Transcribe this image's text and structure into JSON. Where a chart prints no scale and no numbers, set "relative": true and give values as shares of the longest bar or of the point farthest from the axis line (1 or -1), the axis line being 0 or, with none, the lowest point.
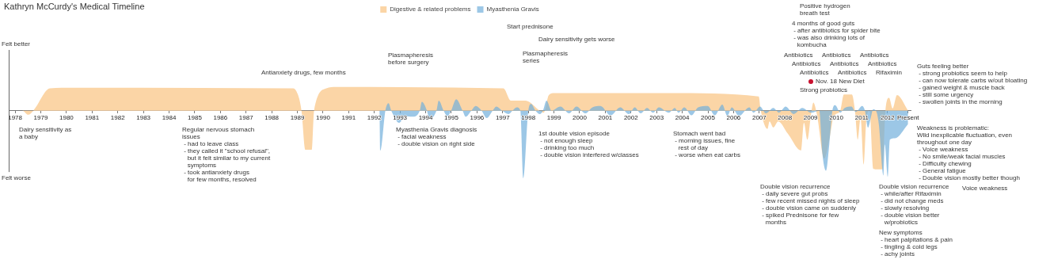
{
  "chart_data": {
    "type": "area",
    "title": "Kathryn McCurdy's Medical Timeline",
    "relative": true,
    "legend": "top",
    "xlim": [
      1977.75,
      2012.9
    ],
    "xticks": [
      1978,
      1979,
      1980,
      1981,
      1982,
      1983,
      1984,
      1985,
      1986,
      1987,
      1988,
      1989,
      1990,
      1991,
      1992,
      1993,
      1994,
      1995,
      1996,
      1997,
      1998,
      1999,
      2000,
      2001,
      2002,
      2003,
      2004,
      2005,
      2006,
      2007,
      2008,
      2009,
      2010,
      2011,
      2012,
      {
        "value": 2012.8,
        "label": "Present"
      }
    ],
    "series": [
      {
        "name": "Digestive & related problems",
        "color": "#fbd5a6",
        "x": [
          1978,
          1978.28,
          1978.51,
          1978.71,
          1979.36,
          1980.27,
          1988.8,
          1988.94,
          1989.16,
          1989.31,
          1989.56,
          1989.65,
          1990.13,
          1990.5,
          1997.03,
          1997.32,
          1997.89,
          1998.45,
          1998.6,
          1998.8,
          1999.02,
          2003.48,
          2006.98,
          2007.06,
          2007.32,
          2007.4,
          2007.55,
          2007.74,
          2008.11,
          2008.63,
          2008.74,
          2008.88,
          2009.02,
          2009.11,
          2009.25,
          2009.53,
          2009.73,
          2009.88,
          2009.99,
          2010.16,
          2010.3,
          2010.61,
          2010.73,
          2010.84,
          2010.95,
          2011.07,
          2011.18,
          2011.3,
          2011.44,
          2011.52,
          2011.81,
          2011.92,
          2012.06,
          2012.2,
          2012.37,
          2012.8
        ],
        "values": [
          0,
          0,
          -0.06,
          0,
          0.33,
          0.34,
          0.33,
          0.3,
          0,
          -0.58,
          -0.58,
          0,
          0.33,
          0.35,
          0.33,
          0.15,
          0.15,
          0,
          -0.03,
          0.23,
          0.26,
          0.26,
          0.21,
          0,
          -0.27,
          -0.16,
          -0.25,
          -0.16,
          -0.34,
          -0.59,
          -0.18,
          -0.43,
          -0.05,
          0.12,
          -0.06,
          -0.71,
          -0.43,
          -0.11,
          -0.05,
          0,
          0.24,
          0.24,
          0,
          -0.43,
          -0.11,
          -0.8,
          -0.11,
          0,
          -0.86,
          -0.87,
          -0.87,
          0,
          0.19,
          0.03,
          0.23,
          0
        ]
      },
      {
        "name": "Myasthenia Gravis",
        "color": "#72afdc",
        "x": [
          1978,
          1992.2,
          1992.23,
          1992.43,
          1992.55,
          1992.66,
          1992.97,
          1993.2,
          1993.48,
          1993.77,
          1993.85,
          1994.05,
          1994.14,
          1994.42,
          1994.51,
          1994.7,
          1994.85,
          1994.99,
          1995.19,
          1995.44,
          1995.56,
          1995.78,
          1995.95,
          1996.18,
          1996.38,
          1996.61,
          1996.75,
          1996.98,
          1997.23,
          1997.38,
          1997.55,
          1997.69,
          1997.8,
          1998.0,
          1998.11,
          1998.28,
          1998.45,
          1998.57,
          1998.71,
          1998.91,
          1999.25,
          1999.59,
          1999.88,
          2000.22,
          2000.5,
          2000.81,
          2001.21,
          2001.58,
          2001.92,
          2002.15,
          2002.38,
          2002.63,
          2002.86,
          2003.09,
          2003.48,
          2003.71,
          2003.85,
          2004.08,
          2004.36,
          2004.62,
          2004.99,
          2005.27,
          2005.56,
          2005.76,
          2005.93,
          2006.21,
          2006.61,
          2006.78,
          2007.03,
          2007.26,
          2007.55,
          2007.77,
          2008.03,
          2008.34,
          2008.68,
          2009.02,
          2009.34,
          2009.45,
          2009.6,
          2009.73,
          2009.85,
          2009.96,
          2010.16,
          2010.33,
          2010.59,
          2010.76,
          2011.01,
          2011.12,
          2011.24,
          2011.35,
          2011.44,
          2011.58,
          2011.66,
          2011.84,
          2011.89,
          2012.01,
          2012.09,
          2012.29,
          2012.8
        ],
        "values": [
          0,
          0,
          -0.59,
          0,
          0.11,
          0,
          -0.18,
          -0.08,
          -0.09,
          0,
          0.13,
          0,
          -0.12,
          0,
          0.15,
          0,
          -0.08,
          0,
          0.17,
          0,
          -0.09,
          0,
          0.07,
          0,
          -0.11,
          0,
          0.06,
          0,
          -0.05,
          0,
          0.05,
          0,
          -1,
          0,
          0.1,
          0,
          -0.05,
          0,
          0.15,
          0,
          0.06,
          -0.04,
          0.06,
          -0.04,
          0.05,
          0.07,
          -0.07,
          0.05,
          -0.05,
          0.05,
          -0.04,
          0.04,
          -0.03,
          0.05,
          -0.03,
          0.04,
          -0.03,
          0.05,
          -0.07,
          0.05,
          0.07,
          -0.07,
          0.09,
          -0.08,
          0.05,
          -0.08,
          0.05,
          -0.03,
          0.06,
          -0.04,
          0.04,
          -0.03,
          0.06,
          -0.05,
          0.04,
          -0.03,
          0,
          -0.6,
          -0.89,
          -0.5,
          0,
          0.08,
          -0.03,
          0.04,
          0.06,
          -0.02,
          0.07,
          0,
          -0.25,
          -0.1,
          0.02,
          -0.03,
          -0.2,
          -0.96,
          -0.5,
          -0.98,
          -0.43,
          -0.41,
          -0.2
        ]
      }
    ],
    "annotations": [
      "Felt better",
      "Felt worse",
      "Dairy sensitivity as\na baby",
      "Antianxiety drugs, few months",
      "Regular nervous stomach\nissues\n - had to leave class\n - they called it \"school refusal\",\n   but it felt similar to my current\n   symptoms\n - took antianxiety drugs\n   for few months, resolved",
      "Plasmapheresis\nbefore surgery",
      "Myasthenia Gravis diagnosis\n - facial weakness\n - double vision on right side",
      "Start prednisone",
      "Dairy sensitivity gets worse",
      "Plasmapheresis\nseries",
      "1st double vision episode\n - not enough sleep\n - drinking too much\n - double vision interfered w/classes",
      "Stomach went bad\n - morning issues, fine\n   rest of day\n - worse when eat carbs",
      "Positive hydrogen\nbreath test",
      "4 months of good guts\n - after antibiotics for spider bite\n - was also drinking lots of\n   kombucha",
      "Antibiotics",
      "Antibiotics",
      "Antibiotics",
      "Antibiotics",
      "Antibiotics",
      "Antibiotics",
      "Antibiotics",
      "Antibiotics",
      "Rifaximin",
      "Nov. 18 New Diet",
      "Strong probiotics",
      "Guts feeling better\n - strong probiotics seem to help\n - can now tolerate carbs w/out bloating\n - gained weight & muscle back\n - still some urgency\n - swollen joints in the morning",
      "Weakness is problematic:\nWild inexplicable fluctuation, even\nthroughout one day\n - Voice weakness\n - No smile/weak facial muscles\n - Difficulty chewing\n - General fatigue\n - Double vision mostly better though",
      "Voice weakness",
      "Double vision recurrence\n - daily severe gut probs\n - few recent missed nights of sleep\n - double vision came on suddenly\n - spiked Prednisone for few\n   months",
      "Double vision recurrence\n - while/after Rifaximin\n - did not change meds\n - slowly resolving\n - double vision better\n   w/probiotics",
      "New symptoms\n - heart palpitations & pain\n - tingling & cold legs\n - achy joints"
    ]
  }
}
